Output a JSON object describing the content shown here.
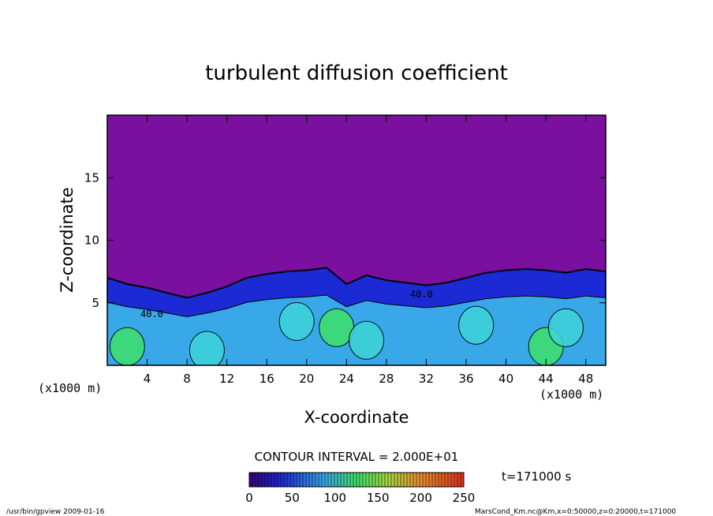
{
  "chart_data": {
    "type": "heatmap",
    "title": "turbulent diffusion coefficient",
    "xlabel": "X-coordinate",
    "ylabel": "Z-coordinate",
    "x_unit": "(x1000 m)",
    "y_unit": "(x1000 m)",
    "xlim": [
      0,
      50
    ],
    "ylim": [
      0,
      20
    ],
    "x_ticks": [
      "4",
      "8",
      "12",
      "16",
      "20",
      "24",
      "28",
      "32",
      "36",
      "40",
      "44",
      "48"
    ],
    "y_ticks": [
      "5",
      "10",
      "15"
    ],
    "contour_interval": "CONTOUR INTERVAL = 2.000E+01",
    "contour_labels": [
      "40.0",
      "40.0"
    ],
    "colorbar": {
      "ticks": [
        "0",
        "50",
        "100",
        "150",
        "200",
        "250"
      ],
      "min": 0,
      "max": 250
    },
    "time_label": "t=171000 s",
    "footer_left": "/usr/bin/gpview  2009-01-16",
    "footer_right": "MarsCond_Km.nc@Km,x=0:50000,z=0:20000,t=171000",
    "colors": {
      "background_field": "#7b0fa0",
      "low": "#1c2ad6",
      "mid": "#38a8e8",
      "cyan": "#3fd4d8",
      "green": "#3fe06a",
      "contour": "#000000"
    },
    "layer_top_profile_x": [
      0,
      2,
      4,
      6,
      8,
      10,
      12,
      14,
      16,
      18,
      20,
      22,
      24,
      26,
      28,
      30,
      32,
      34,
      36,
      38,
      40,
      42,
      44,
      46,
      48,
      50
    ],
    "layer_top_profile_z": [
      7.0,
      6.5,
      6.2,
      5.8,
      5.4,
      5.8,
      6.3,
      7.0,
      7.3,
      7.5,
      7.6,
      7.8,
      6.5,
      7.2,
      6.8,
      6.6,
      6.4,
      6.6,
      7.0,
      7.4,
      7.6,
      7.7,
      7.6,
      7.4,
      7.7,
      7.5
    ]
  }
}
